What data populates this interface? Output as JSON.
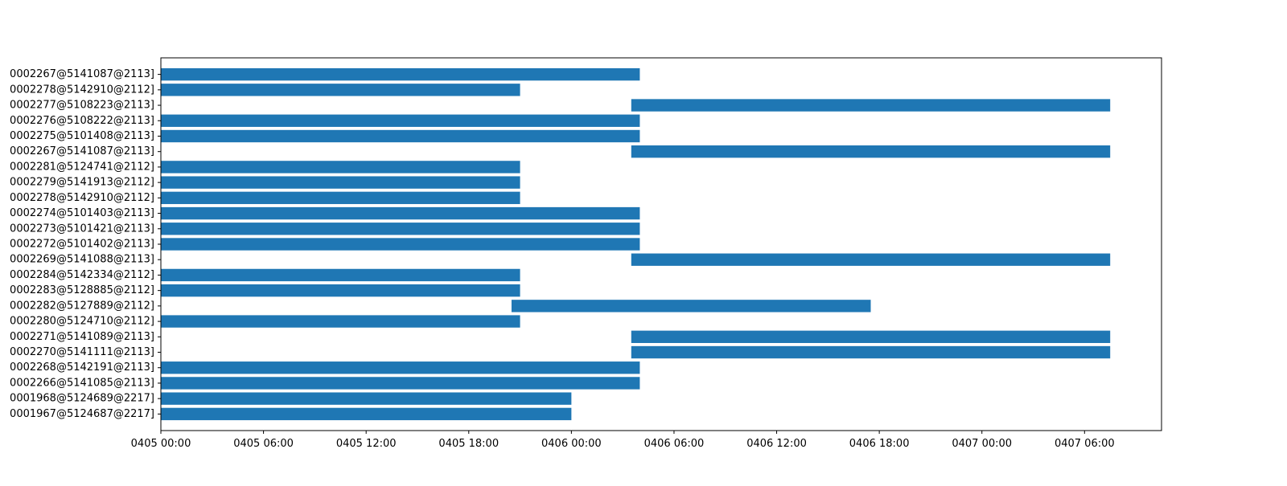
{
  "chart_data": {
    "type": "bar",
    "orientation": "horizontal",
    "style": "gantt",
    "bar_color": "#1f77b4",
    "grid": false,
    "x_axis": {
      "kind": "datetime",
      "min": "04-05 00:00",
      "max": "04-07 10:30",
      "ticks": [
        {
          "value": "04-05 00:00",
          "label": "0405 00:00"
        },
        {
          "value": "04-05 06:00",
          "label": "0405 06:00"
        },
        {
          "value": "04-05 12:00",
          "label": "0405 12:00"
        },
        {
          "value": "04-05 18:00",
          "label": "0405 18:00"
        },
        {
          "value": "04-06 00:00",
          "label": "0406 00:00"
        },
        {
          "value": "04-06 06:00",
          "label": "0406 06:00"
        },
        {
          "value": "04-06 12:00",
          "label": "0406 12:00"
        },
        {
          "value": "04-06 18:00",
          "label": "0406 18:00"
        },
        {
          "value": "04-07 00:00",
          "label": "0407 00:00"
        },
        {
          "value": "04-07 06:00",
          "label": "0407 06:00"
        }
      ]
    },
    "tasks": [
      {
        "label": "0002267@5141087@2113]",
        "start": "04-05 00:00",
        "end": "04-06 04:00"
      },
      {
        "label": "0002278@5142910@2112]",
        "start": "04-05 00:00",
        "end": "04-05 21:00"
      },
      {
        "label": "0002277@5108223@2113]",
        "start": "04-06 03:30",
        "end": "04-07 07:30"
      },
      {
        "label": "0002276@5108222@2113]",
        "start": "04-05 00:00",
        "end": "04-06 04:00"
      },
      {
        "label": "0002275@5101408@2113]",
        "start": "04-05 00:00",
        "end": "04-06 04:00"
      },
      {
        "label": "0002267@5141087@2113]",
        "start": "04-06 03:30",
        "end": "04-07 07:30"
      },
      {
        "label": "0002281@5124741@2112]",
        "start": "04-05 00:00",
        "end": "04-05 21:00"
      },
      {
        "label": "0002279@5141913@2112]",
        "start": "04-05 00:00",
        "end": "04-05 21:00"
      },
      {
        "label": "0002278@5142910@2112]",
        "start": "04-05 00:00",
        "end": "04-05 21:00"
      },
      {
        "label": "0002274@5101403@2113]",
        "start": "04-05 00:00",
        "end": "04-06 04:00"
      },
      {
        "label": "0002273@5101421@2113]",
        "start": "04-05 00:00",
        "end": "04-06 04:00"
      },
      {
        "label": "0002272@5101402@2113]",
        "start": "04-05 00:00",
        "end": "04-06 04:00"
      },
      {
        "label": "0002269@5141088@2113]",
        "start": "04-06 03:30",
        "end": "04-07 07:30"
      },
      {
        "label": "0002284@5142334@2112]",
        "start": "04-05 00:00",
        "end": "04-05 21:00"
      },
      {
        "label": "0002283@5128885@2112]",
        "start": "04-05 00:00",
        "end": "04-05 21:00"
      },
      {
        "label": "0002282@5127889@2112]",
        "start": "04-05 20:30",
        "end": "04-06 17:30"
      },
      {
        "label": "0002280@5124710@2112]",
        "start": "04-05 00:00",
        "end": "04-05 21:00"
      },
      {
        "label": "0002271@5141089@2113]",
        "start": "04-06 03:30",
        "end": "04-07 07:30"
      },
      {
        "label": "0002270@5141111@2113]",
        "start": "04-06 03:30",
        "end": "04-07 07:30"
      },
      {
        "label": "0002268@5142191@2113]",
        "start": "04-05 00:00",
        "end": "04-06 04:00"
      },
      {
        "label": "0002266@5141085@2113]",
        "start": "04-05 00:00",
        "end": "04-06 04:00"
      },
      {
        "label": "0001968@5124689@2217]",
        "start": "04-05 00:00",
        "end": "04-06 00:00"
      },
      {
        "label": "0001967@5124687@2217]",
        "start": "04-05 00:00",
        "end": "04-06 00:00"
      }
    ]
  }
}
